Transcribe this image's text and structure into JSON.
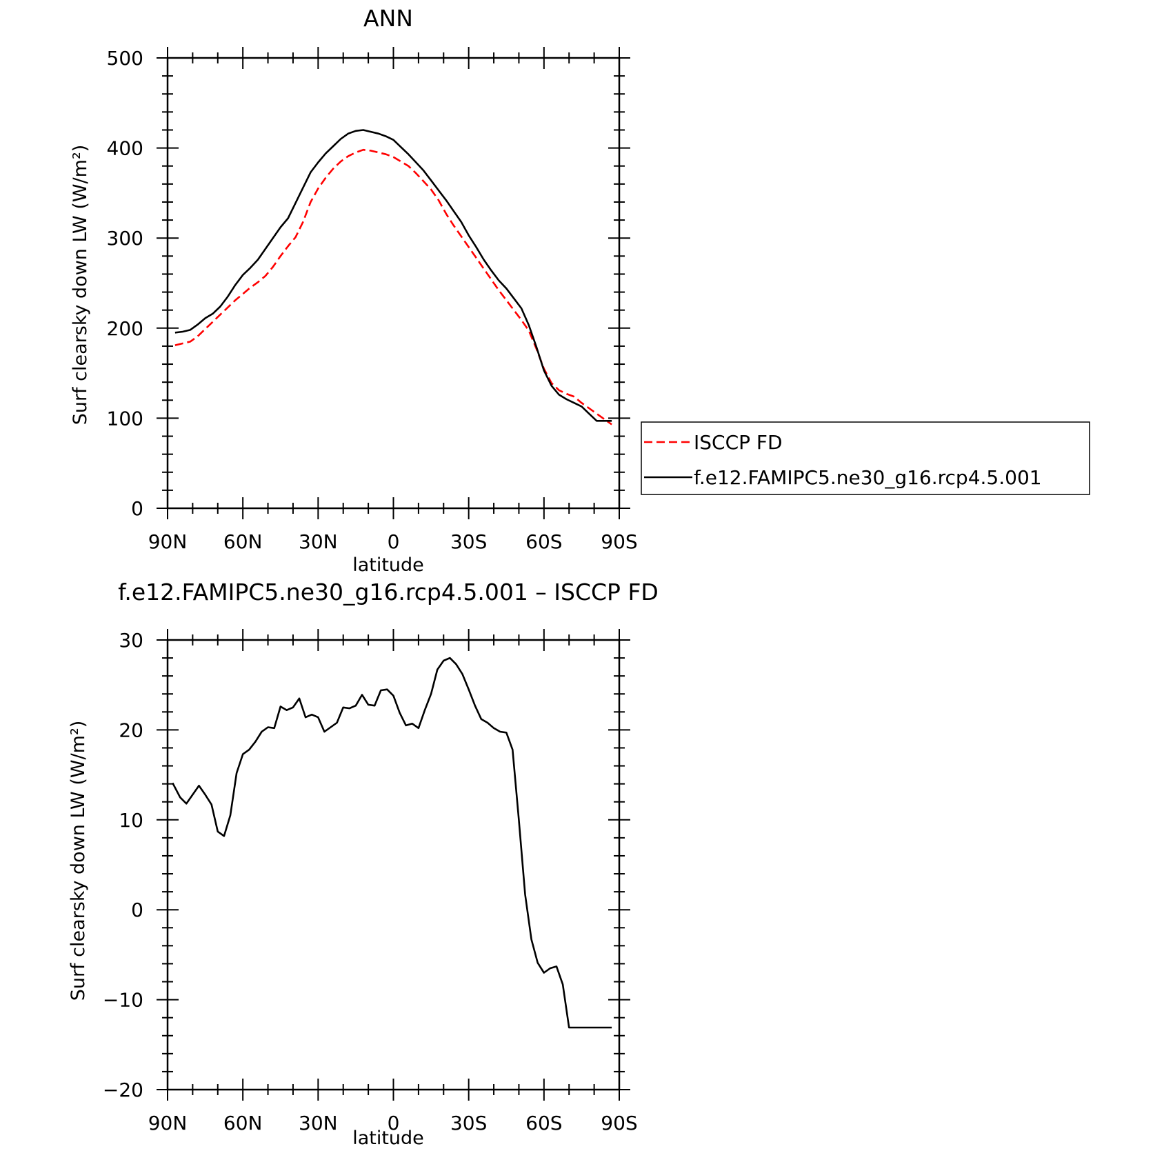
{
  "chart_data": [
    {
      "type": "line",
      "title": "ANN",
      "xlabel": "latitude",
      "ylabel": "Surf clearsky down LW (W/m²)",
      "xlim": [
        90,
        -90
      ],
      "ylim": [
        0,
        500
      ],
      "yticks": [
        "500",
        "400",
        "300",
        "200",
        "100",
        "0"
      ],
      "xticks": [
        "90N",
        "60N",
        "30N",
        "0",
        "30S",
        "60S",
        "90S"
      ],
      "legend": {
        "position": "right",
        "entries": [
          "ISCCP FD",
          "f.e12.FAMIPC5.ne30_g16.rcp4.5.001"
        ]
      },
      "series": [
        {
          "name": "ISCCP FD",
          "color": "#ff0000",
          "dash": "dashed",
          "x": [
            87,
            84,
            81,
            78,
            75,
            72,
            69,
            66,
            63,
            60,
            57,
            54,
            51,
            48,
            45,
            42,
            39,
            36,
            33,
            30,
            27,
            24,
            21,
            18,
            15,
            12,
            9,
            6,
            3,
            0,
            -3,
            -6,
            -9,
            -12,
            -15,
            -18,
            -21,
            -24,
            -27,
            -30,
            -33,
            -36,
            -39,
            -42,
            -45,
            -48,
            -51,
            -54,
            -57,
            -60,
            -63,
            -66,
            -69,
            -72,
            -75,
            -78,
            -81,
            -84,
            -87
          ],
          "y": [
            181,
            183,
            185,
            191,
            199,
            207,
            215,
            223,
            231,
            238,
            245,
            251,
            258,
            268,
            280,
            291,
            301,
            318,
            340,
            355,
            367,
            377,
            385,
            391,
            395,
            398,
            397,
            395,
            393,
            390,
            385,
            380,
            372,
            363,
            354,
            342,
            327,
            314,
            302,
            290,
            278,
            266,
            254,
            242,
            231,
            220,
            209,
            197,
            177,
            155,
            139,
            131,
            127,
            124,
            117,
            111,
            105,
            99,
            93
          ]
        },
        {
          "name": "f.e12.FAMIPC5.ne30_g16.rcp4.5.001",
          "color": "#000000",
          "dash": "solid",
          "x": [
            87,
            84,
            81,
            78,
            75,
            72,
            69,
            66,
            63,
            60,
            57,
            54,
            51,
            48,
            45,
            42,
            39,
            36,
            33,
            30,
            27,
            24,
            21,
            18,
            15,
            12,
            9,
            6,
            3,
            0,
            -3,
            -6,
            -9,
            -12,
            -15,
            -18,
            -21,
            -24,
            -27,
            -30,
            -33,
            -36,
            -39,
            -42,
            -45,
            -48,
            -51,
            -54,
            -57,
            -60,
            -63,
            -66,
            -69,
            -72,
            -75,
            -78,
            -81,
            -84,
            -87
          ],
          "y": [
            195,
            196,
            198,
            204,
            211,
            216,
            224,
            235,
            248,
            259,
            267,
            276,
            288,
            300,
            312,
            322,
            339,
            356,
            373,
            384,
            394,
            402,
            410,
            416,
            419,
            420,
            418,
            416,
            413,
            409,
            401,
            393,
            384,
            375,
            364,
            353,
            342,
            330,
            318,
            303,
            290,
            276,
            264,
            253,
            244,
            233,
            222,
            203,
            179,
            153,
            136,
            126,
            121,
            117,
            113,
            105,
            97,
            97,
            97
          ]
        }
      ]
    },
    {
      "type": "line",
      "title": "f.e12.FAMIPC5.ne30_g16.rcp4.5.001 – ISCCP FD",
      "xlabel": "latitude",
      "ylabel": "Surf clearsky down LW (W/m²)",
      "xlim": [
        90,
        -90
      ],
      "ylim": [
        -20,
        30
      ],
      "yticks": [
        "30",
        "20",
        "10",
        "0",
        "−10",
        "−20"
      ],
      "xticks": [
        "90N",
        "60N",
        "30N",
        "0",
        "30S",
        "60S",
        "90S"
      ],
      "series": [
        {
          "color": "#000000",
          "dash": "solid",
          "x": [
            88,
            85,
            82.5,
            80,
            77.5,
            75,
            72.5,
            70,
            67.5,
            65,
            62.5,
            60,
            57.5,
            55,
            52.5,
            50,
            47.5,
            45,
            42.5,
            40,
            37.5,
            35,
            32.5,
            30,
            27.5,
            25,
            22.5,
            20,
            17.5,
            15,
            12.5,
            10,
            7.5,
            5,
            2.5,
            0,
            -2.5,
            -5,
            -7.5,
            -10,
            -12.5,
            -15,
            -17.5,
            -20,
            -22.5,
            -25,
            -27.5,
            -30,
            -32.5,
            -35,
            -37.5,
            -40,
            -42.5,
            -45,
            -47.5,
            -50,
            -52.5,
            -55,
            -57.5,
            -60,
            -62.5,
            -65,
            -67.5,
            -70,
            -72.5,
            -75,
            -77.5,
            -80,
            -82.5,
            -85,
            -87
          ],
          "y": [
            14.1,
            12.5,
            11.8,
            12.8,
            13.8,
            12.8,
            11.7,
            8.7,
            8.2,
            10.5,
            15.2,
            17.3,
            17.8,
            18.7,
            19.8,
            20.3,
            20.2,
            22.6,
            22.2,
            22.5,
            23.5,
            21.4,
            21.7,
            21.4,
            19.8,
            20.3,
            20.8,
            22.5,
            22.4,
            22.7,
            23.9,
            22.8,
            22.7,
            24.4,
            24.5,
            23.8,
            21.9,
            20.5,
            20.7,
            20.2,
            22.2,
            24.0,
            26.7,
            27.7,
            28.0,
            27.3,
            26.2,
            24.5,
            22.7,
            21.2,
            20.8,
            20.2,
            19.8,
            19.7,
            17.8,
            10.0,
            1.7,
            -3.3,
            -5.9,
            -7.0,
            -6.5,
            -6.3,
            -8.3,
            -13.1,
            -13.1,
            -13.1,
            -13.1,
            -13.1,
            -13.1,
            -13.1,
            -13.1
          ]
        }
      ]
    }
  ]
}
